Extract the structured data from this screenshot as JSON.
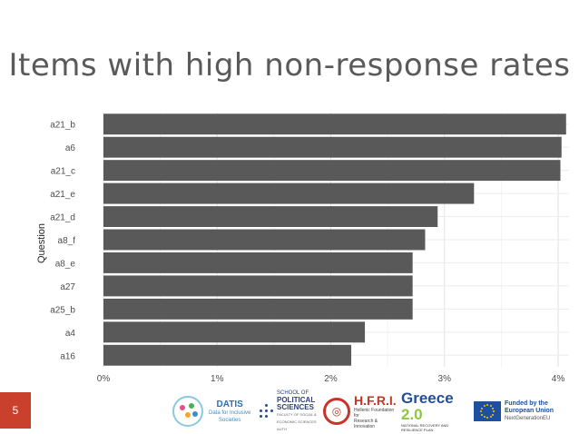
{
  "slide": {
    "title": "Items with high non-response rates",
    "number": "5"
  },
  "chart_data": {
    "type": "bar",
    "orientation": "horizontal",
    "title": "Items with high non-response rates",
    "xlabel": "",
    "ylabel": "Question",
    "categories": [
      "a21_b",
      "a6",
      "a21_c",
      "a21_e",
      "a21_d",
      "a8_f",
      "a8_e",
      "a27",
      "a25_b",
      "a4",
      "a16"
    ],
    "values": [
      4.07,
      4.03,
      4.02,
      3.26,
      2.94,
      2.83,
      2.72,
      2.72,
      2.72,
      2.3,
      2.18
    ],
    "xlim": [
      0,
      4.1
    ],
    "xticks": [
      0,
      1,
      2,
      3,
      4
    ],
    "xtick_labels": [
      "0%",
      "1%",
      "2%",
      "3%",
      "4%"
    ],
    "bar_color": "#595959",
    "grid": true,
    "legend": "none"
  },
  "footer": {
    "datis": {
      "name": "DATIS",
      "tagline_1": "Data for Inclusive",
      "tagline_2": "Societies"
    },
    "school": {
      "line_1": "SCHOOL OF",
      "line_2": "POLITICAL",
      "line_3": "SCIENCES",
      "line_4": "FACULTY OF SOCIAL &",
      "line_5": "ECONOMIC SCIENCES AUTH"
    },
    "hfri": {
      "name": "H.F.R.I.",
      "line_1": "Hellenic Foundation for",
      "line_2": "Research & Innovation"
    },
    "greece": {
      "name": "Greece",
      "version": "2.0",
      "sub": "NATIONAL RECOVERY AND RESILIENCE PLAN"
    },
    "eu": {
      "line_1": "Funded by the",
      "line_2": "European Union",
      "line_3": "NextGenerationEU"
    }
  }
}
